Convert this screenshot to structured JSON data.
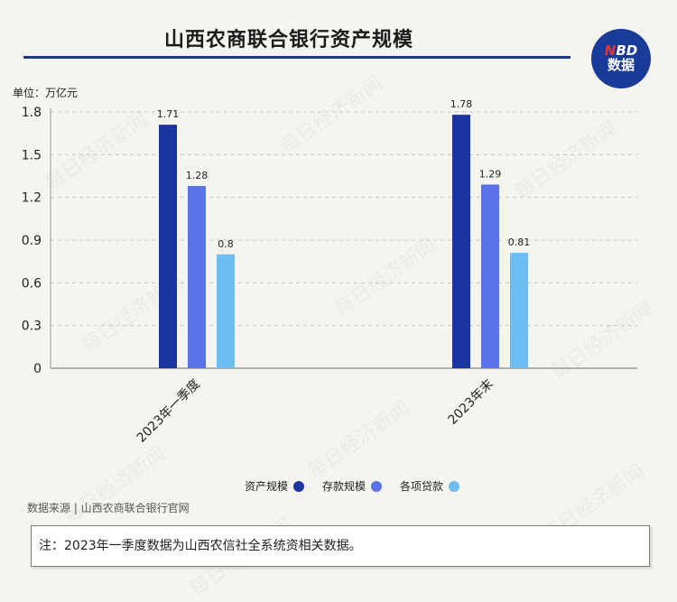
{
  "header": {
    "title": "山西农商联合银行资产规模",
    "logo_line1_n": "N",
    "logo_line1_rest": "BD",
    "logo_line2": "数据"
  },
  "watermark_text": "每日经济新闻",
  "chart_data": {
    "type": "bar",
    "unit_label": "单位：万亿元",
    "categories": [
      "2023年一季度",
      "2023年末"
    ],
    "series": [
      {
        "name": "资产规模",
        "values": [
          1.71,
          1.78
        ],
        "color": "#1a35a0"
      },
      {
        "name": "存款规模",
        "values": [
          1.28,
          1.29
        ],
        "color": "#5a73e6"
      },
      {
        "name": "各项贷款",
        "values": [
          0.8,
          0.81
        ],
        "color": "#6cbdf2"
      }
    ],
    "data_labels": [
      [
        "1.71",
        "1.28",
        "0.8"
      ],
      [
        "1.78",
        "1.29",
        "0.81"
      ]
    ],
    "ylim": [
      0,
      1.8
    ],
    "yticks": [
      0,
      0.3,
      0.6,
      0.9,
      1.2,
      1.5,
      1.8
    ],
    "ytick_labels": [
      "0",
      "0.3",
      "0.6",
      "0.9",
      "1.2",
      "1.5",
      "1.8"
    ],
    "grid": true,
    "legend_position": "bottom-center"
  },
  "footer": {
    "source": "数据来源 | 山西农商联合银行官网",
    "note": "注：2023年一季度数据为山西农信社全系统资相关数据。"
  }
}
